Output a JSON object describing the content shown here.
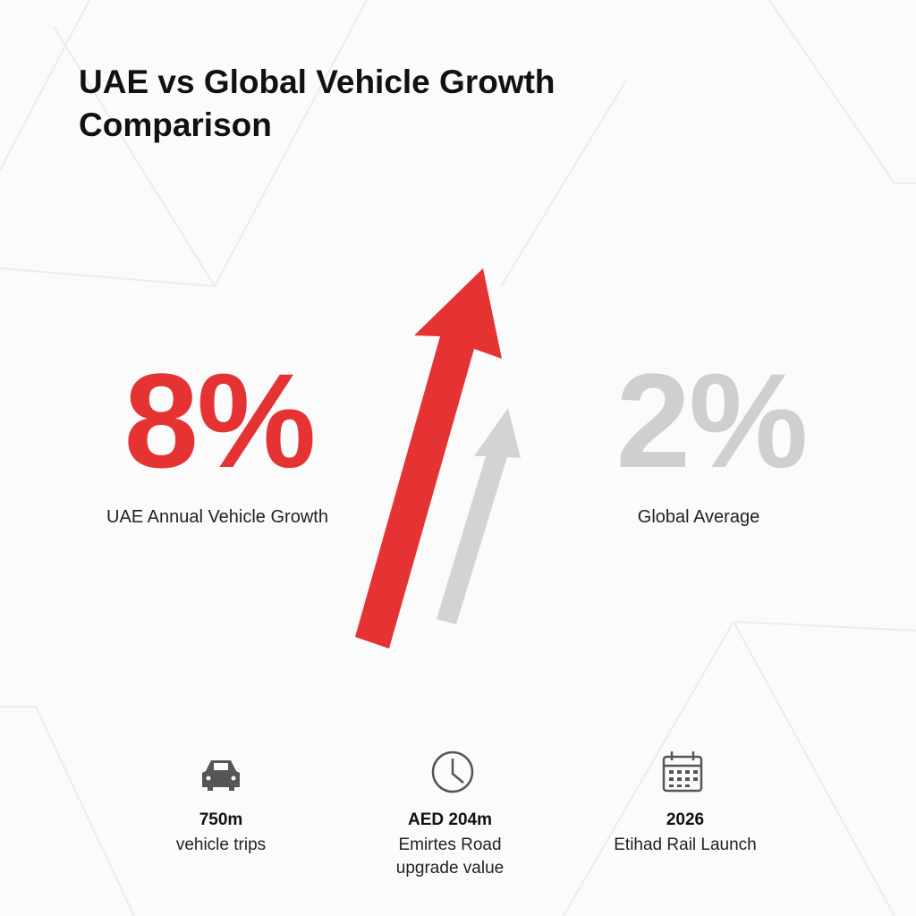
{
  "title": "UAE vs Global Vehicle Growth Comparison",
  "comparison": [
    {
      "value": "8%",
      "label": "UAE Annual Vehicle Growth"
    },
    {
      "value": "2%",
      "label": "Global Average"
    }
  ],
  "stats": [
    {
      "value": "750m",
      "label": "vehicle trips"
    },
    {
      "value": "AED 204m",
      "label": "Emirtes Road upgrade value"
    },
    {
      "value": "2026",
      "label": "Etihad Rail Launch"
    }
  ]
}
